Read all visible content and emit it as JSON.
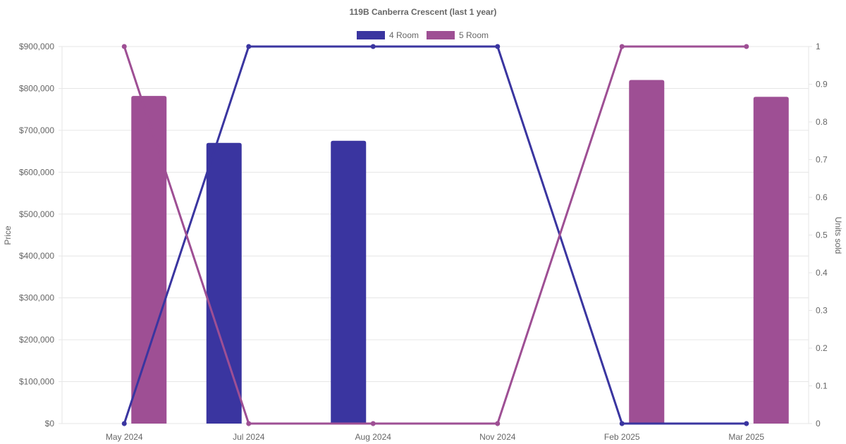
{
  "chart_data": {
    "type": "bar",
    "title": "119B Canberra Crescent (last 1 year)",
    "categories": [
      "May 2024",
      "Jul 2024",
      "Aug 2024",
      "Nov 2024",
      "Feb 2025",
      "Mar 2025"
    ],
    "ylabel": "Price",
    "y2label": "Units sold",
    "ylim": [
      0,
      900000
    ],
    "y2lim": [
      0,
      1
    ],
    "yticks": [
      "$0",
      "$100,000",
      "$200,000",
      "$300,000",
      "$400,000",
      "$500,000",
      "$600,000",
      "$700,000",
      "$800,000",
      "$900,000"
    ],
    "y2ticks": [
      "0",
      "0.1",
      "0.2",
      "0.3",
      "0.4",
      "0.5",
      "0.6",
      "0.7",
      "0.8",
      "0.9",
      "1"
    ],
    "grid": true,
    "legend_position": "top",
    "series": [
      {
        "name": "4 Room",
        "color": "#3a35a0",
        "bar_values": [
          null,
          670000,
          675000,
          null,
          null,
          null
        ],
        "units_sold": [
          0,
          1,
          1,
          1,
          0,
          0
        ]
      },
      {
        "name": "5 Room",
        "color": "#9e4f94",
        "bar_values": [
          782000,
          null,
          null,
          null,
          820000,
          780000
        ],
        "units_sold": [
          1,
          0,
          0,
          0,
          1,
          1
        ]
      }
    ],
    "notes": ""
  }
}
